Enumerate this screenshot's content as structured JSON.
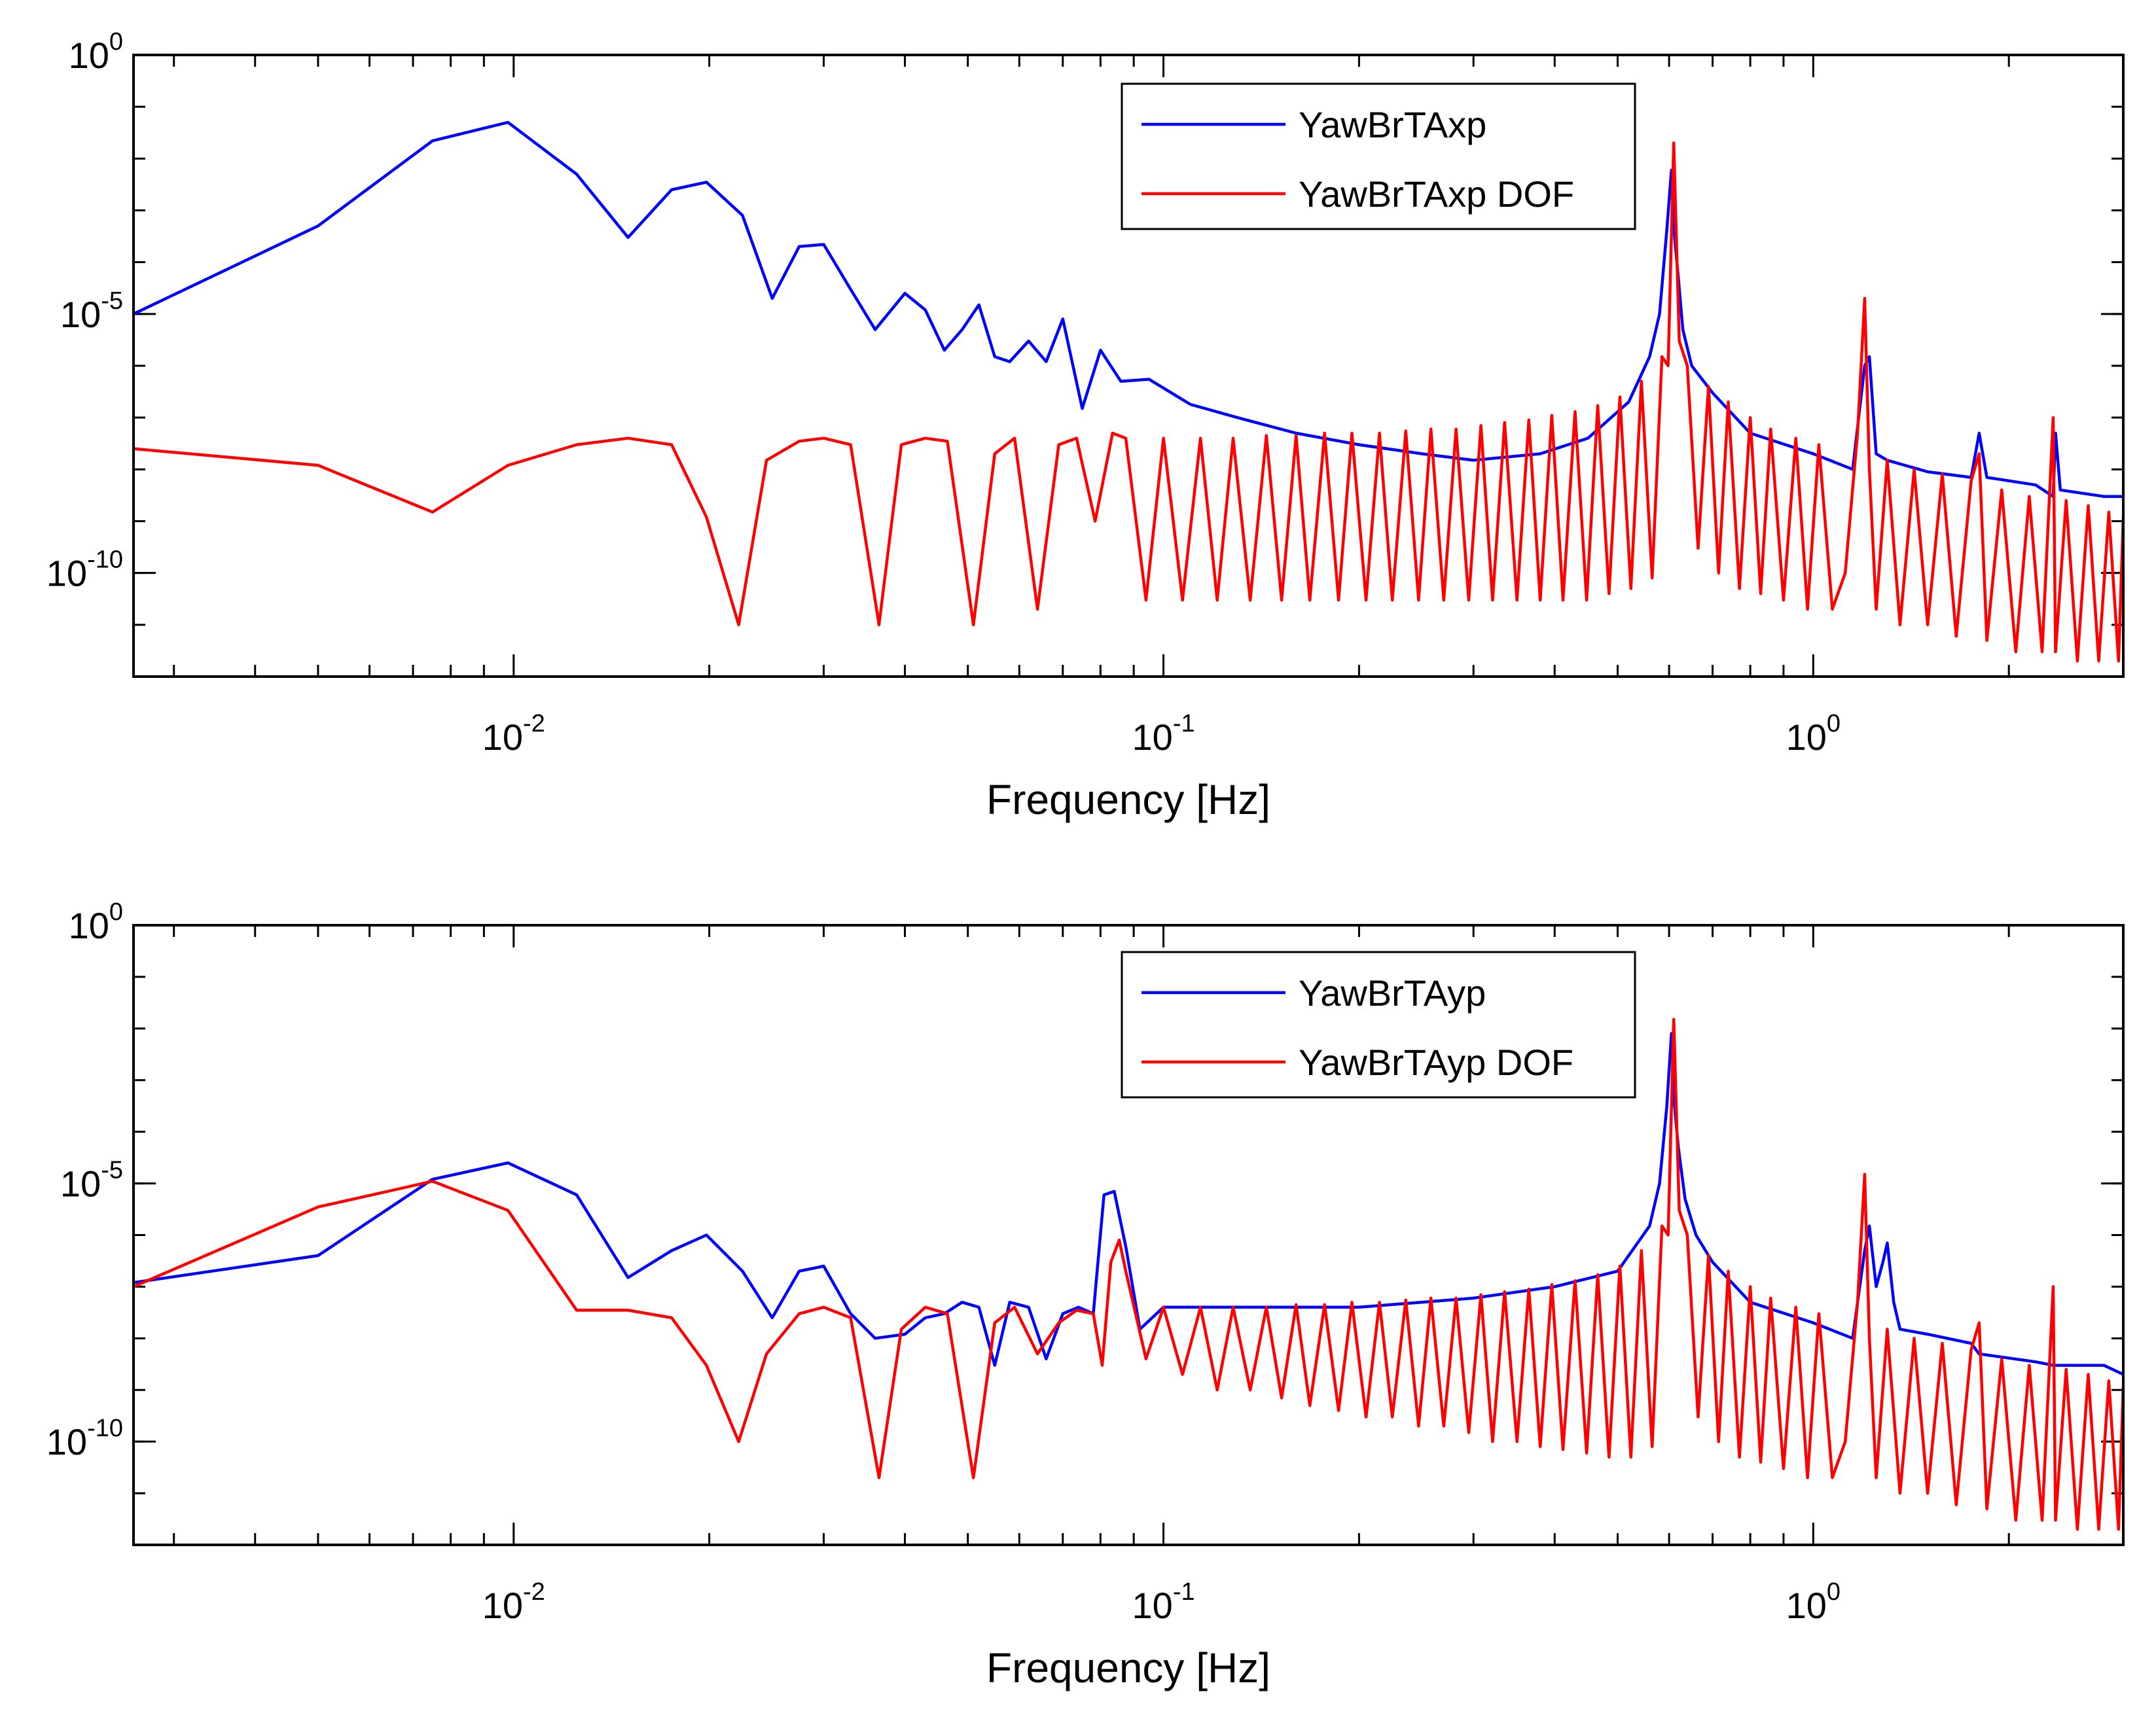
{
  "chart_data": [
    {
      "type": "line",
      "title": "",
      "xlabel": "Frequency [Hz]",
      "ylabel": "",
      "xscale": "log",
      "yscale": "log",
      "xlim": [
        0.0026,
        3.0
      ],
      "ylim": [
        1e-12,
        1
      ],
      "xticks": [
        {
          "value": 0.01,
          "base": "10",
          "exp": "-2"
        },
        {
          "value": 0.1,
          "base": "10",
          "exp": "-1"
        },
        {
          "value": 1,
          "base": "10",
          "exp": "0"
        }
      ],
      "yticks": [
        {
          "value": 1,
          "base": "10",
          "exp": "0"
        },
        {
          "value": 1e-05,
          "base": "10",
          "exp": "-5"
        },
        {
          "value": 1e-10,
          "base": "10",
          "exp": "-10"
        }
      ],
      "legend_position": "top-right",
      "series": [
        {
          "name": "YawBrTAxp",
          "color": "#0000ff",
          "x": [
            0.0026,
            0.005,
            0.0075,
            0.0098,
            0.0125,
            0.015,
            0.0175,
            0.0198,
            0.0225,
            0.025,
            0.0275,
            0.03,
            0.033,
            0.036,
            0.04,
            0.043,
            0.046,
            0.049,
            0.052,
            0.055,
            0.058,
            0.062,
            0.066,
            0.07,
            0.075,
            0.08,
            0.086,
            0.095,
            0.11,
            0.13,
            0.16,
            0.2,
            0.25,
            0.3,
            0.38,
            0.45,
            0.52,
            0.56,
            0.58,
            0.595,
            0.605,
            0.612,
            0.62,
            0.63,
            0.65,
            0.7,
            0.8,
            1.0,
            1.15,
            1.2,
            1.22,
            1.25,
            1.3,
            1.5,
            1.75,
            1.8,
            1.85,
            2.2,
            2.34,
            2.36,
            2.4,
            2.8,
            3.0
          ],
          "values": [
            1e-05,
            0.0005,
            0.022,
            0.05,
            0.005,
            0.0003,
            0.0025,
            0.0035,
            0.0008,
            2e-05,
            0.0002,
            0.00022,
            3e-05,
            5e-06,
            2.5e-05,
            1.2e-05,
            2e-06,
            5e-06,
            1.5e-05,
            1.5e-06,
            1.2e-06,
            3e-06,
            1.2e-06,
            8e-06,
            1.5e-07,
            2e-06,
            5e-07,
            5.5e-07,
            1.8e-07,
            1e-07,
            5e-08,
            3e-08,
            2e-08,
            1.5e-08,
            2e-08,
            4e-08,
            2e-07,
            1.5e-06,
            1e-05,
            0.0004,
            0.006,
            0.0003,
            5e-05,
            5e-06,
            1e-06,
            3e-07,
            5e-08,
            2e-08,
            1e-08,
            1e-06,
            1.5e-06,
            2e-08,
            1.5e-08,
            9e-09,
            7e-09,
            5e-08,
            7e-09,
            5e-09,
            3e-09,
            5e-08,
            4e-09,
            3e-09,
            3e-09
          ]
        },
        {
          "name": "YawBrTAxp DOF",
          "color": "#ff0000",
          "x": [
            0.0026,
            0.005,
            0.0075,
            0.0098,
            0.0125,
            0.015,
            0.0175,
            0.0198,
            0.0222,
            0.0245,
            0.0275,
            0.03,
            0.033,
            0.0365,
            0.0395,
            0.043,
            0.0465,
            0.051,
            0.055,
            0.059,
            0.064,
            0.069,
            0.0735,
            0.0785,
            0.0835,
            0.0875,
            0.094,
            0.1,
            0.107,
            0.114,
            0.121,
            0.128,
            0.136,
            0.144,
            0.152,
            0.16,
            0.168,
            0.177,
            0.186,
            0.195,
            0.205,
            0.215,
            0.225,
            0.236,
            0.247,
            0.258,
            0.27,
            0.282,
            0.295,
            0.308,
            0.321,
            0.335,
            0.35,
            0.365,
            0.38,
            0.396,
            0.412,
            0.43,
            0.448,
            0.466,
            0.485,
            0.504,
            0.524,
            0.544,
            0.565,
            0.585,
            0.598,
            0.61,
            0.622,
            0.64,
            0.665,
            0.69,
            0.715,
            0.74,
            0.77,
            0.8,
            0.83,
            0.86,
            0.9,
            0.94,
            0.98,
            1.02,
            1.07,
            1.12,
            1.17,
            1.2,
            1.22,
            1.25,
            1.3,
            1.36,
            1.43,
            1.5,
            1.58,
            1.66,
            1.75,
            1.8,
            1.85,
            1.95,
            2.05,
            2.15,
            2.25,
            2.34,
            2.36,
            2.45,
            2.55,
            2.65,
            2.75,
            2.85,
            2.95,
            3.0
          ],
          "values": [
            2.5e-08,
            1.2e-08,
            1.5e-09,
            1.2e-08,
            3e-08,
            4e-08,
            3e-08,
            1.2e-09,
            1e-11,
            1.5e-08,
            3.5e-08,
            4e-08,
            3e-08,
            1e-11,
            3e-08,
            4e-08,
            3.5e-08,
            1e-11,
            2e-08,
            4e-08,
            2e-11,
            3e-08,
            4e-08,
            1e-09,
            5e-08,
            4e-08,
            3e-11,
            4e-08,
            3e-11,
            4e-08,
            3e-11,
            4e-08,
            3e-11,
            4.5e-08,
            3e-11,
            4.5e-08,
            3e-11,
            5e-08,
            3e-11,
            5e-08,
            3e-11,
            5e-08,
            3e-11,
            5.5e-08,
            3e-11,
            6e-08,
            3e-11,
            6e-08,
            3e-11,
            7e-08,
            3e-11,
            8e-08,
            3e-11,
            9e-08,
            3e-11,
            1.1e-07,
            3e-11,
            1.3e-07,
            3e-11,
            1.7e-07,
            4e-11,
            2.5e-07,
            5e-11,
            5e-07,
            8e-11,
            1.5e-06,
            1e-06,
            0.02,
            3e-06,
            1e-06,
            3e-10,
            4e-07,
            1e-10,
            2e-07,
            5e-11,
            1e-07,
            4e-11,
            6e-08,
            3e-11,
            4e-08,
            2e-11,
            3e-08,
            2e-11,
            1e-10,
            5e-08,
            2e-05,
            1e-08,
            2e-11,
            1.5e-08,
            1e-11,
            1e-08,
            1e-11,
            8e-09,
            6e-12,
            6e-09,
            2e-08,
            5e-12,
            4e-09,
            3e-12,
            3e-09,
            3e-12,
            1e-07,
            3e-12,
            2.5e-09,
            2e-12,
            2e-09,
            2e-12,
            1.5e-09,
            2e-12,
            1.2e-09
          ]
        }
      ]
    },
    {
      "type": "line",
      "title": "",
      "xlabel": "Frequency [Hz]",
      "ylabel": "",
      "xscale": "log",
      "yscale": "log",
      "xlim": [
        0.0026,
        3.0
      ],
      "ylim": [
        1e-12,
        1
      ],
      "xticks": [
        {
          "value": 0.01,
          "base": "10",
          "exp": "-2"
        },
        {
          "value": 0.1,
          "base": "10",
          "exp": "-1"
        },
        {
          "value": 1,
          "base": "10",
          "exp": "0"
        }
      ],
      "yticks": [
        {
          "value": 1,
          "base": "10",
          "exp": "0"
        },
        {
          "value": 1e-05,
          "base": "10",
          "exp": "-5"
        },
        {
          "value": 1e-10,
          "base": "10",
          "exp": "-10"
        }
      ],
      "legend_position": "top-right",
      "series": [
        {
          "name": "YawBrTAyp",
          "color": "#0000ff",
          "x": [
            0.0026,
            0.005,
            0.0075,
            0.0098,
            0.0125,
            0.015,
            0.0175,
            0.0198,
            0.0225,
            0.025,
            0.0275,
            0.03,
            0.033,
            0.036,
            0.04,
            0.043,
            0.046,
            0.049,
            0.052,
            0.055,
            0.058,
            0.062,
            0.066,
            0.07,
            0.074,
            0.078,
            0.081,
            0.084,
            0.0875,
            0.092,
            0.1,
            0.15,
            0.2,
            0.3,
            0.4,
            0.5,
            0.56,
            0.58,
            0.595,
            0.605,
            0.612,
            0.62,
            0.635,
            0.66,
            0.7,
            0.8,
            1.0,
            1.15,
            1.2,
            1.22,
            1.25,
            1.28,
            1.3,
            1.33,
            1.36,
            1.5,
            1.75,
            1.8,
            2.2,
            2.34,
            2.36,
            2.4,
            2.8,
            3.0
          ],
          "values": [
            1.2e-07,
            4e-07,
            1.2e-05,
            2.5e-05,
            6e-06,
            1.5e-07,
            5e-07,
            1e-06,
            2e-07,
            2.5e-08,
            2e-07,
            2.5e-07,
            3e-08,
            1e-08,
            1.2e-08,
            2.5e-08,
            3e-08,
            5e-08,
            4e-08,
            3e-09,
            5e-08,
            4e-08,
            4e-09,
            3e-08,
            4e-08,
            3e-08,
            6e-06,
            7e-06,
            6e-07,
            1.5e-08,
            4e-08,
            4e-08,
            4e-08,
            6e-08,
            1e-07,
            2e-07,
            1.5e-06,
            1e-05,
            0.0003,
            0.008,
            0.0003,
            5e-05,
            5e-06,
            1e-06,
            3e-07,
            5e-08,
            2e-08,
            1e-08,
            5e-07,
            1.5e-06,
            1e-07,
            3e-07,
            7e-07,
            5e-08,
            1.5e-08,
            1.2e-08,
            8e-09,
            5e-09,
            3.5e-09,
            3e-09,
            3e-09,
            3e-09,
            3e-09,
            2e-09
          ]
        },
        {
          "name": "YawBrTAyp DOF",
          "color": "#ff0000",
          "x": [
            0.0026,
            0.005,
            0.0075,
            0.0098,
            0.0125,
            0.015,
            0.0175,
            0.0198,
            0.0222,
            0.0245,
            0.0275,
            0.03,
            0.033,
            0.0365,
            0.0395,
            0.043,
            0.0465,
            0.051,
            0.055,
            0.059,
            0.064,
            0.069,
            0.0735,
            0.078,
            0.0805,
            0.083,
            0.0855,
            0.0875,
            0.094,
            0.1,
            0.107,
            0.114,
            0.121,
            0.128,
            0.136,
            0.144,
            0.152,
            0.16,
            0.168,
            0.177,
            0.186,
            0.195,
            0.205,
            0.215,
            0.225,
            0.236,
            0.247,
            0.258,
            0.27,
            0.282,
            0.295,
            0.308,
            0.321,
            0.335,
            0.35,
            0.365,
            0.38,
            0.396,
            0.412,
            0.43,
            0.448,
            0.466,
            0.485,
            0.504,
            0.524,
            0.544,
            0.565,
            0.585,
            0.598,
            0.61,
            0.622,
            0.64,
            0.665,
            0.69,
            0.715,
            0.74,
            0.77,
            0.8,
            0.83,
            0.86,
            0.9,
            0.94,
            0.98,
            1.02,
            1.07,
            1.12,
            1.17,
            1.2,
            1.22,
            1.25,
            1.3,
            1.36,
            1.43,
            1.5,
            1.58,
            1.66,
            1.75,
            1.8,
            1.85,
            1.95,
            2.05,
            2.15,
            2.25,
            2.34,
            2.36,
            2.45,
            2.55,
            2.65,
            2.75,
            2.85,
            2.95,
            3.0
          ],
          "values": [
            1e-07,
            3.5e-06,
            1.1e-05,
            3e-06,
            3.5e-08,
            3.5e-08,
            2.5e-08,
            3e-09,
            1e-10,
            5e-09,
            3e-08,
            4e-08,
            2.5e-08,
            2e-11,
            1.5e-08,
            4e-08,
            3e-08,
            2e-11,
            2e-08,
            4e-08,
            5e-09,
            2e-08,
            3.5e-08,
            3e-08,
            3e-09,
            3e-07,
            8e-07,
            2e-07,
            4e-09,
            4e-08,
            2e-09,
            4e-08,
            1e-09,
            4e-08,
            1e-09,
            4e-08,
            7e-10,
            4.5e-08,
            5e-10,
            4.5e-08,
            4e-10,
            5e-08,
            3e-10,
            5e-08,
            3e-10,
            5.5e-08,
            2e-10,
            6e-08,
            2e-10,
            6e-08,
            1.5e-10,
            7e-08,
            1e-10,
            8e-08,
            1e-10,
            9e-08,
            8e-11,
            1.1e-07,
            7e-11,
            1.3e-07,
            6e-11,
            1.7e-07,
            5e-11,
            2.5e-07,
            5e-11,
            5e-07,
            8e-11,
            1.5e-06,
            1e-06,
            0.015,
            3e-06,
            1e-06,
            3e-10,
            4e-07,
            1e-10,
            2e-07,
            5e-11,
            1e-07,
            4e-11,
            6e-08,
            3e-11,
            4e-08,
            2e-11,
            3e-08,
            2e-11,
            1e-10,
            5e-08,
            1.5e-05,
            1e-08,
            2e-11,
            1.5e-08,
            1e-11,
            1e-08,
            1e-11,
            8e-09,
            6e-12,
            6e-09,
            2e-08,
            5e-12,
            4e-09,
            3e-12,
            3e-09,
            3e-12,
            1e-07,
            3e-12,
            2.5e-09,
            2e-12,
            2e-09,
            2e-12,
            1.5e-09,
            2e-12,
            1.2e-09
          ]
        }
      ]
    }
  ]
}
